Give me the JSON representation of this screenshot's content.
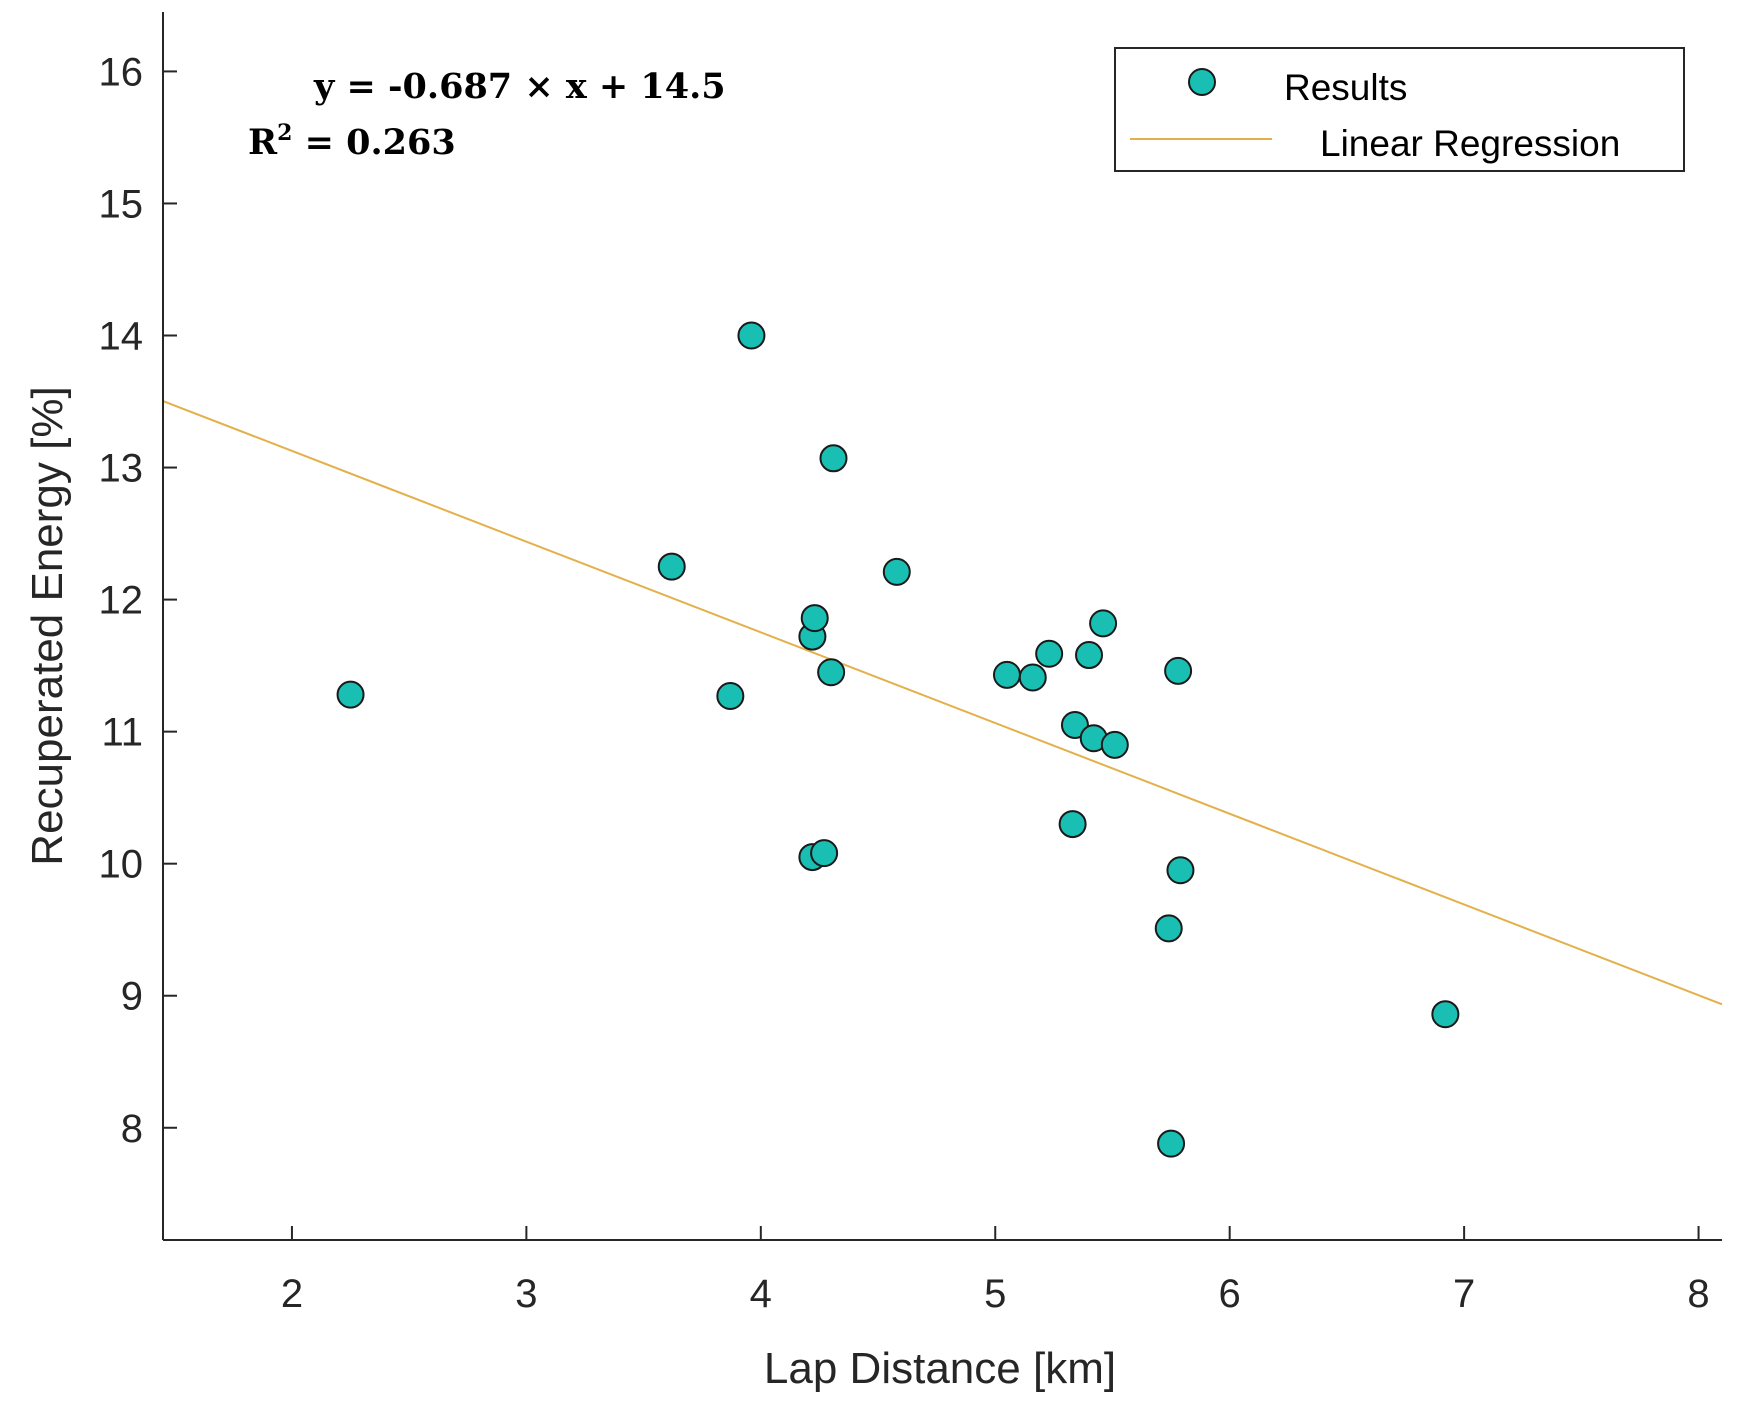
{
  "chart_data": {
    "type": "scatter",
    "xlabel": "Lap Distance [km]",
    "ylabel": "Recuperated Energy [%]",
    "xlim": [
      1.45,
      8.1
    ],
    "ylim": [
      7.15,
      16.45
    ],
    "xticks": [
      2,
      3,
      4,
      5,
      6,
      7,
      8
    ],
    "yticks": [
      8,
      9,
      10,
      11,
      12,
      13,
      14,
      15,
      16
    ],
    "grid": false,
    "legend_position": "top-right",
    "annotation": {
      "equation": "y = -0.687 × x + 14.5",
      "r2_label": "R",
      "r2_exponent": "2",
      "r2_value": " = 0.263"
    },
    "series": [
      {
        "name": "Results",
        "kind": "scatter",
        "color": "#1ABFB3",
        "edge_color": "#1a1a1a",
        "points": [
          {
            "x": 2.25,
            "y": 11.28
          },
          {
            "x": 3.62,
            "y": 12.25
          },
          {
            "x": 3.87,
            "y": 11.27
          },
          {
            "x": 3.96,
            "y": 14.0
          },
          {
            "x": 4.22,
            "y": 11.72
          },
          {
            "x": 4.23,
            "y": 11.86
          },
          {
            "x": 4.3,
            "y": 11.45
          },
          {
            "x": 4.31,
            "y": 13.07
          },
          {
            "x": 4.22,
            "y": 10.05
          },
          {
            "x": 4.27,
            "y": 10.08
          },
          {
            "x": 4.58,
            "y": 12.21
          },
          {
            "x": 5.05,
            "y": 11.43
          },
          {
            "x": 5.16,
            "y": 11.41
          },
          {
            "x": 5.23,
            "y": 11.59
          },
          {
            "x": 5.34,
            "y": 11.05
          },
          {
            "x": 5.33,
            "y": 10.3
          },
          {
            "x": 5.4,
            "y": 11.58
          },
          {
            "x": 5.42,
            "y": 10.95
          },
          {
            "x": 5.46,
            "y": 11.82
          },
          {
            "x": 5.51,
            "y": 10.9
          },
          {
            "x": 5.78,
            "y": 11.46
          },
          {
            "x": 5.79,
            "y": 9.95
          },
          {
            "x": 5.74,
            "y": 9.51
          },
          {
            "x": 5.75,
            "y": 7.88
          },
          {
            "x": 6.92,
            "y": 8.86
          }
        ]
      },
      {
        "name": "Linear Regression",
        "kind": "line",
        "color": "#E3B04B",
        "slope": -0.687,
        "intercept": 14.5
      }
    ]
  }
}
